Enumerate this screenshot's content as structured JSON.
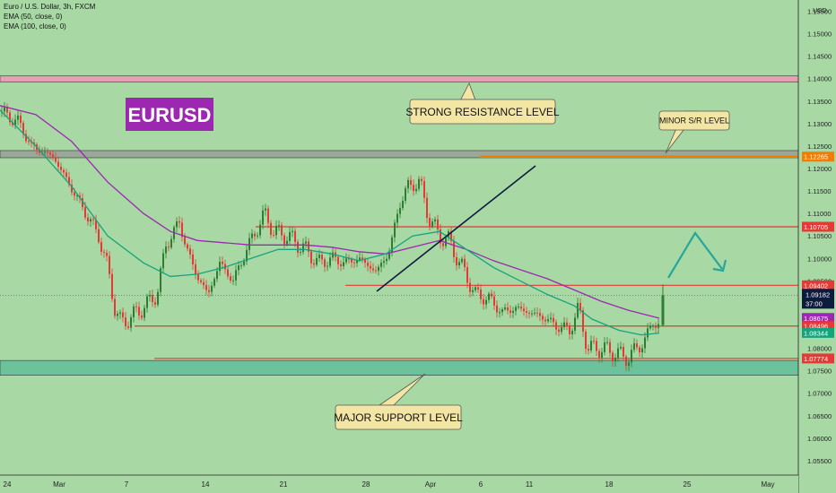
{
  "header": {
    "symbol": "Euro / U.S. Dollar, 3h, FXCM",
    "ema1": "EMA (50, close, 0)",
    "ema2": "EMA (100, close, 0)"
  },
  "currency_label": "USD",
  "symbol_badge": "EURUSD",
  "annotations": {
    "strong_resistance": "STRONG RESISTANCE LEVEL",
    "minor_sr": "MINOR S/R LEVEL",
    "major_support": "MAJOR SUPPORT LEVEL"
  },
  "colors": {
    "background": "#a8d9a5",
    "candle_up": "#2e7d32",
    "candle_down": "#e53935",
    "ema50": "#15a37d",
    "ema100": "#9c27b0",
    "level_line": "#e53935",
    "resistance_zone": "#e8a0b4",
    "minor_zone": "#9aa89a",
    "support_zone": "#6cc29b",
    "minor_line": "#f57c00",
    "badge_bg": "#9c27b0",
    "forecast": "#26a69a"
  },
  "chart_data": {
    "type": "candlestick",
    "title": "Euro / U.S. Dollar, 3h, FXCM",
    "x_ticks": [
      "24",
      "Mar",
      "7",
      "14",
      "21",
      "28",
      "Apr",
      "6",
      "11",
      "18",
      "25",
      "May"
    ],
    "y_ticks": [
      "1.15500",
      "1.15000",
      "1.14500",
      "1.14000",
      "1.13500",
      "1.13000",
      "1.12500",
      "1.12000",
      "1.11500",
      "1.11000",
      "1.10500",
      "1.10000",
      "1.09500",
      "1.09000",
      "1.08500",
      "1.08000",
      "1.07500",
      "1.07000",
      "1.06500",
      "1.06000",
      "1.05500"
    ],
    "ylim": [
      1.0518,
      1.1575
    ],
    "close_path": [
      [
        0,
        1.1325
      ],
      [
        20,
        1.1305
      ],
      [
        35,
        1.125
      ],
      [
        60,
        1.1225
      ],
      [
        90,
        1.112
      ],
      [
        110,
        1.105
      ],
      [
        120,
        1.098
      ],
      [
        128,
        1.089
      ],
      [
        135,
        1.0855
      ],
      [
        150,
        1.0875
      ],
      [
        165,
        1.09
      ],
      [
        175,
        1.092
      ],
      [
        185,
        1.103
      ],
      [
        200,
        1.108
      ],
      [
        210,
        1.101
      ],
      [
        220,
        1.096
      ],
      [
        232,
        1.092
      ],
      [
        245,
        1.099
      ],
      [
        260,
        1.095
      ],
      [
        275,
        1.102
      ],
      [
        295,
        1.11
      ],
      [
        305,
        1.106
      ],
      [
        320,
        1.105
      ],
      [
        340,
        1.102
      ],
      [
        355,
        1.099
      ],
      [
        370,
        1.1
      ],
      [
        385,
        1.099
      ],
      [
        400,
        1.1
      ],
      [
        420,
        1.097
      ],
      [
        435,
        1.102
      ],
      [
        445,
        1.112
      ],
      [
        455,
        1.116
      ],
      [
        468,
        1.117
      ],
      [
        478,
        1.109
      ],
      [
        490,
        1.105
      ],
      [
        500,
        1.104
      ],
      [
        515,
        1.098
      ],
      [
        530,
        1.092
      ],
      [
        545,
        1.091
      ],
      [
        560,
        1.088
      ],
      [
        575,
        1.089
      ],
      [
        590,
        1.088
      ],
      [
        605,
        1.087
      ],
      [
        620,
        1.085
      ],
      [
        635,
        1.084
      ],
      [
        645,
        1.089
      ],
      [
        655,
        1.08
      ],
      [
        670,
        1.08
      ],
      [
        685,
        1.079
      ],
      [
        700,
        1.0778
      ],
      [
        710,
        1.08
      ],
      [
        720,
        1.082
      ],
      [
        728,
        1.086
      ],
      [
        735,
        1.085
      ]
    ],
    "last_candle": {
      "open": 1.0852,
      "close": 1.0918,
      "high": 1.0942,
      "low": 1.0848
    },
    "ema50_path": [
      [
        0,
        1.133
      ],
      [
        40,
        1.125
      ],
      [
        80,
        1.116
      ],
      [
        120,
        1.105
      ],
      [
        160,
        1.099
      ],
      [
        190,
        1.096
      ],
      [
        220,
        1.0965
      ],
      [
        250,
        1.098
      ],
      [
        280,
        1.1
      ],
      [
        310,
        1.102
      ],
      [
        340,
        1.102
      ],
      [
        370,
        1.101
      ],
      [
        400,
        1.0995
      ],
      [
        430,
        1.101
      ],
      [
        460,
        1.105
      ],
      [
        490,
        1.106
      ],
      [
        520,
        1.102
      ],
      [
        550,
        1.098
      ],
      [
        580,
        1.095
      ],
      [
        610,
        1.092
      ],
      [
        640,
        1.0895
      ],
      [
        660,
        1.0865
      ],
      [
        690,
        1.084
      ],
      [
        715,
        1.083
      ],
      [
        735,
        1.0834
      ]
    ],
    "ema100_path": [
      [
        0,
        1.134
      ],
      [
        40,
        1.132
      ],
      [
        80,
        1.126
      ],
      [
        120,
        1.117
      ],
      [
        160,
        1.11
      ],
      [
        190,
        1.106
      ],
      [
        220,
        1.104
      ],
      [
        250,
        1.1035
      ],
      [
        280,
        1.103
      ],
      [
        310,
        1.103
      ],
      [
        340,
        1.103
      ],
      [
        370,
        1.1025
      ],
      [
        400,
        1.1015
      ],
      [
        430,
        1.101
      ],
      [
        460,
        1.1025
      ],
      [
        490,
        1.104
      ],
      [
        520,
        1.102
      ],
      [
        550,
        1.0995
      ],
      [
        580,
        1.0975
      ],
      [
        610,
        1.0955
      ],
      [
        640,
        1.093
      ],
      [
        670,
        1.0905
      ],
      [
        700,
        1.0885
      ],
      [
        735,
        1.0867
      ]
    ],
    "levels": [
      {
        "label": "1.12265",
        "value": 1.12265,
        "type": "minor"
      },
      {
        "label": "1.10705",
        "value": 1.10705,
        "type": "resistance"
      },
      {
        "label": "1.09402",
        "value": 1.09402,
        "type": "resistance"
      },
      {
        "label": "1.08496",
        "value": 1.08496,
        "type": "support"
      },
      {
        "label": "1.07774",
        "value": 1.07774,
        "type": "support"
      }
    ],
    "price_tags": [
      {
        "label": "1.12265",
        "value": 1.12265,
        "color": "#f57c00",
        "text": "#ffffff"
      },
      {
        "label": "1.10705",
        "value": 1.10705,
        "color": "#e53935",
        "text": "#ffffff"
      },
      {
        "label": "1.09402",
        "value": 1.09402,
        "color": "#e53935",
        "text": "#ffffff"
      },
      {
        "label": "1.08675",
        "value": 1.08675,
        "color": "#9c27b0",
        "text": "#ffffff"
      },
      {
        "label": "1.08496",
        "value": 1.08496,
        "color": "#e53935",
        "text": "#ffffff"
      },
      {
        "label": "1.08344",
        "value": 1.08344,
        "color": "#15a37d",
        "text": "#ffffff"
      },
      {
        "label": "1.07774",
        "value": 1.07774,
        "color": "#e53935",
        "text": "#ffffff"
      }
    ],
    "current_price": {
      "label": "1.09182",
      "countdown": "37:00",
      "value": 1.09182
    },
    "zones": [
      {
        "name": "strong_resistance",
        "from": 1.1393,
        "to": 1.1406
      },
      {
        "name": "minor_sr",
        "from": 1.1224,
        "to": 1.124
      },
      {
        "name": "major_support",
        "from": 1.074,
        "to": 1.0773
      }
    ]
  }
}
